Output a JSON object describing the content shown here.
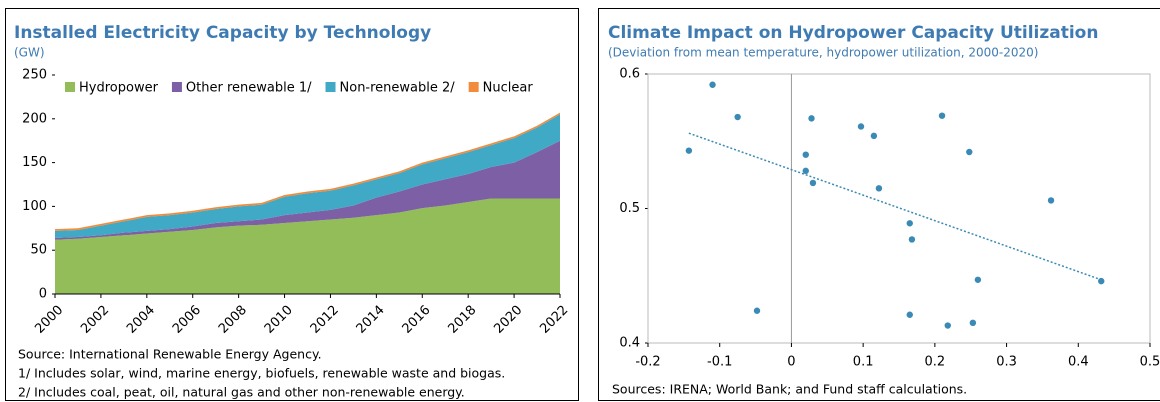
{
  "chart_data": [
    {
      "type": "area",
      "title": "Installed Electricity Capacity by Technology",
      "subtitle": "(GW)",
      "x": [
        2000,
        2001,
        2002,
        2003,
        2004,
        2005,
        2006,
        2007,
        2008,
        2009,
        2010,
        2011,
        2012,
        2013,
        2014,
        2015,
        2016,
        2017,
        2018,
        2019,
        2020,
        2021,
        2022
      ],
      "series": [
        {
          "name": "Hydropower",
          "color": "#92bd58",
          "values": [
            62,
            63,
            65,
            67,
            69,
            71,
            73,
            76,
            78,
            79,
            81,
            83,
            85,
            87,
            90,
            93,
            98,
            101,
            105,
            109,
            109,
            109,
            109
          ]
        },
        {
          "name": "Other renewable 1/",
          "color": "#7d5fa6",
          "values": [
            2,
            2,
            2,
            3,
            3,
            3,
            4,
            5,
            5,
            6,
            9,
            10,
            11,
            14,
            20,
            24,
            27,
            30,
            32,
            36,
            41,
            53,
            66
          ]
        },
        {
          "name": "Non-renewable 2/",
          "color": "#3fa9c6",
          "values": [
            8,
            8,
            11,
            13,
            16,
            16,
            16,
            16,
            17,
            17,
            21,
            22,
            22,
            23,
            21,
            21,
            23,
            24,
            25,
            25,
            28,
            28,
            30
          ]
        },
        {
          "name": "Nuclear",
          "color": "#f28c3c",
          "values": [
            2,
            2,
            2,
            2,
            2,
            2,
            2,
            2,
            2,
            2,
            2,
            2,
            2,
            2,
            2,
            2,
            2,
            2,
            2,
            2,
            2,
            2,
            2
          ]
        }
      ],
      "xlim": [
        2000,
        2022
      ],
      "xticks": [
        2000,
        2002,
        2004,
        2006,
        2008,
        2010,
        2012,
        2014,
        2016,
        2018,
        2020,
        2022
      ],
      "ylim": [
        0,
        250
      ],
      "yticks": [
        0,
        50,
        100,
        150,
        200,
        250
      ],
      "notes": [
        "Source: International Renewable Energy Agency.",
        "1/ Includes solar, wind, marine energy, biofuels, renewable waste and biogas.",
        "2/ Includes coal, peat, oil, natural gas and other non-renewable energy."
      ]
    },
    {
      "type": "scatter",
      "title": "Climate Impact on Hydropower Capacity Utilization",
      "subtitle": "(Deviation from mean temperature, hydropower utilization, 2000-2020)",
      "x": [
        -0.11,
        -0.075,
        -0.143,
        -0.048,
        0.028,
        0.02,
        0.02,
        0.03,
        0.097,
        0.115,
        0.122,
        0.21,
        0.248,
        0.165,
        0.168,
        0.26,
        0.165,
        0.218,
        0.253,
        0.362,
        0.432
      ],
      "values": [
        0.592,
        0.568,
        0.543,
        0.424,
        0.567,
        0.54,
        0.528,
        0.519,
        0.561,
        0.554,
        0.515,
        0.569,
        0.542,
        0.489,
        0.477,
        0.447,
        0.421,
        0.413,
        0.415,
        0.506,
        0.446
      ],
      "color": "#3a8ab5",
      "trendline": {
        "x": [
          -0.143,
          0.432
        ],
        "y": [
          0.556,
          0.447
        ]
      },
      "xlim": [
        -0.2,
        0.5
      ],
      "xticks": [
        -0.2,
        -0.1,
        0,
        0.1,
        0.2,
        0.3,
        0.4,
        0.5
      ],
      "ylim": [
        0.4,
        0.6
      ],
      "yticks": [
        0.4,
        0.5,
        0.6
      ],
      "notes": [
        "Sources: IRENA; World Bank; and Fund staff calculations."
      ]
    }
  ]
}
